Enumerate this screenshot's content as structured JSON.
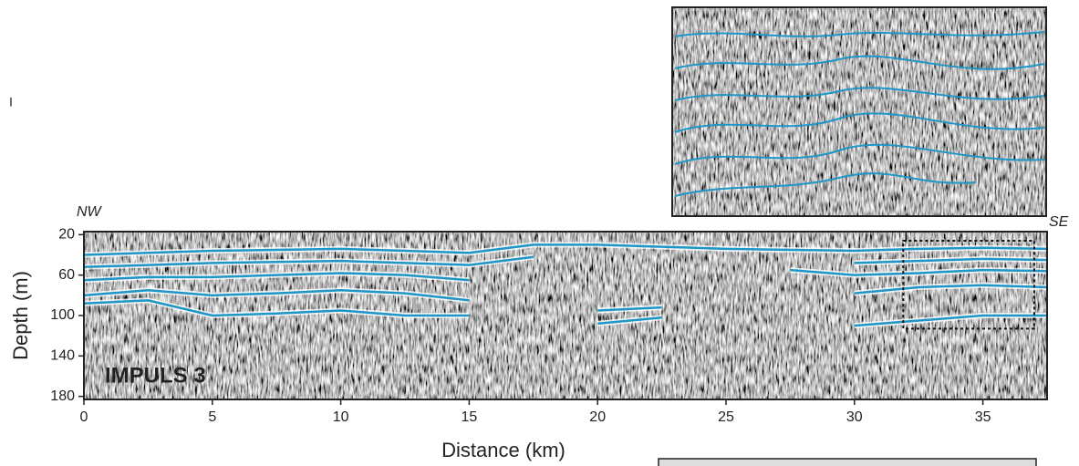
{
  "chart_data": {
    "type": "profile",
    "xlabel": "Distance (km)",
    "ylabel": "Depth (m)",
    "left_label": "NW",
    "right_label": "SE",
    "profile_name": "IMPULS 3",
    "stray_mark": "I",
    "xlim": [
      0,
      37.5
    ],
    "xticks": [
      0,
      5,
      10,
      15,
      20,
      25,
      30,
      35
    ],
    "ylim": [
      17,
      183
    ],
    "yticks": [
      20,
      60,
      100,
      140,
      180
    ],
    "y_inverted": true,
    "x": [
      0,
      2.5,
      5,
      7.5,
      10,
      12.5,
      15,
      17.5,
      20,
      22.5,
      25,
      27.5,
      30,
      32.5,
      35,
      37.5
    ],
    "series": [
      {
        "color": "#1e96c8",
        "values": [
          40,
          38,
          36,
          35,
          34,
          36,
          38,
          30,
          30,
          32,
          34,
          35,
          36,
          34,
          33,
          34
        ]
      },
      {
        "color": "#1e96c8",
        "values": [
          52,
          50,
          48,
          47,
          46,
          48,
          50,
          42,
          null,
          null,
          null,
          null,
          48,
          46,
          44,
          45
        ]
      },
      {
        "color": "#1e96c8",
        "values": [
          65,
          62,
          62,
          60,
          58,
          60,
          65,
          null,
          null,
          null,
          null,
          55,
          60,
          58,
          55,
          56
        ]
      },
      {
        "color": "#1e96c8",
        "values": [
          80,
          75,
          80,
          78,
          75,
          78,
          85,
          null,
          95,
          92,
          null,
          null,
          78,
          72,
          70,
          72
        ]
      },
      {
        "color": "#1e96c8",
        "values": [
          88,
          85,
          100,
          98,
          95,
          100,
          100,
          null,
          108,
          102,
          null,
          null,
          110,
          105,
          100,
          100
        ]
      }
    ],
    "zoom_box": {
      "x": [
        31.9,
        37
      ],
      "y": [
        26,
        113
      ]
    }
  }
}
